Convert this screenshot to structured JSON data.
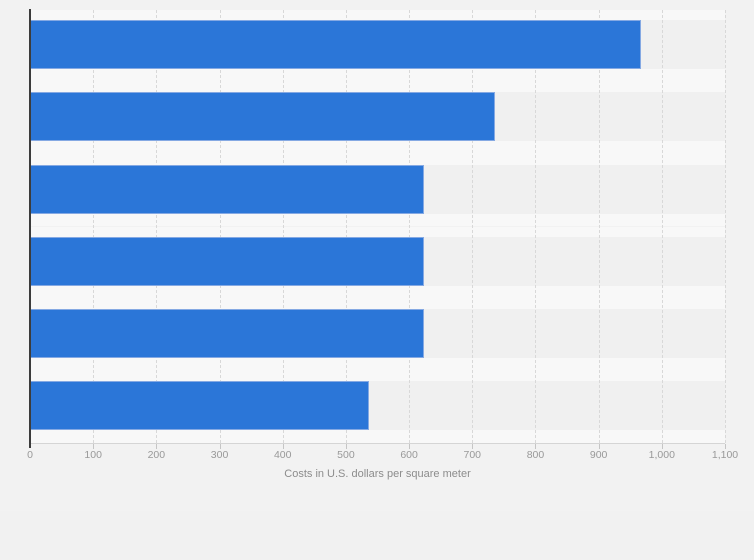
{
  "chart_data": {
    "type": "bar",
    "orientation": "horizontal",
    "values": [
      967,
      736,
      623,
      623,
      623,
      537
    ],
    "n_bars": 6,
    "xlabel": "Costs in U.S. dollars per square meter",
    "xlim": [
      0,
      1100
    ],
    "x_ticks": [
      0,
      100,
      200,
      300,
      400,
      500,
      600,
      700,
      800,
      900,
      1000,
      1100
    ],
    "x_tick_labels": [
      "0",
      "100",
      "200",
      "300",
      "400",
      "500",
      "600",
      "700",
      "800",
      "900",
      "1,000",
      "1,100"
    ],
    "grid": "vertical-dashed",
    "legend": "none"
  },
  "colors": {
    "bar": "#2b76d8",
    "bar_border": "#85a9e3",
    "page_bg": "#f2f2f2",
    "row_gap_bg": "#f8f8f8",
    "bar_band_bg": "#f0f0f0",
    "gridline": "#d8d8d8",
    "axis_line": "#3c3c3c",
    "baseline": "#d5d5d5",
    "tick": "#c5c5c5",
    "tick_label": "#999999",
    "axis_title": "#8c8c8c"
  }
}
